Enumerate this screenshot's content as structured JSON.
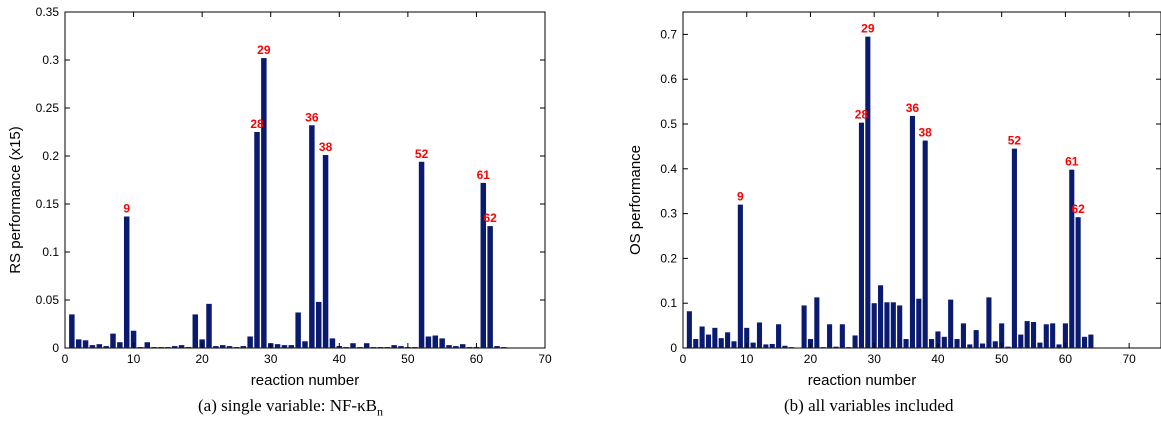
{
  "chart_data": [
    {
      "type": "bar",
      "title": "",
      "xlabel": "reaction number",
      "ylabel": "RS performance (x15)",
      "xlim": [
        0,
        70
      ],
      "ylim": [
        0,
        0.35
      ],
      "xticks": [
        0,
        10,
        20,
        30,
        40,
        50,
        60,
        70
      ],
      "yticks": [
        0,
        0.05,
        0.1,
        0.15,
        0.2,
        0.25,
        0.3,
        0.35
      ],
      "ytick_labels": [
        "0",
        "0.05",
        "0.1",
        "0.15",
        "0.2",
        "0.25",
        "0.3",
        "0.35"
      ],
      "grid": false,
      "bar_color": "#0a1a6e",
      "annotation_color": "#ff0000",
      "x": [
        1,
        2,
        3,
        4,
        5,
        6,
        7,
        8,
        9,
        10,
        11,
        12,
        13,
        14,
        15,
        16,
        17,
        18,
        19,
        20,
        21,
        22,
        23,
        24,
        25,
        26,
        27,
        28,
        29,
        30,
        31,
        32,
        33,
        34,
        35,
        36,
        37,
        38,
        39,
        40,
        41,
        42,
        43,
        44,
        45,
        46,
        47,
        48,
        49,
        50,
        51,
        52,
        53,
        54,
        55,
        56,
        57,
        58,
        59,
        60,
        61,
        62,
        63,
        64
      ],
      "values": [
        0.035,
        0.009,
        0.008,
        0.003,
        0.004,
        0.002,
        0.015,
        0.006,
        0.137,
        0.018,
        0.001,
        0.006,
        0.001,
        0.001,
        0.001,
        0.002,
        0.003,
        0.001,
        0.035,
        0.009,
        0.046,
        0.002,
        0.003,
        0.002,
        0.001,
        0.002,
        0.012,
        0.225,
        0.302,
        0.005,
        0.004,
        0.003,
        0.003,
        0.037,
        0.007,
        0.232,
        0.048,
        0.201,
        0.01,
        0.002,
        0.001,
        0.005,
        0.001,
        0.005,
        0.001,
        0.001,
        0.001,
        0.003,
        0.002,
        0.001,
        0.001,
        0.194,
        0.012,
        0.013,
        0.01,
        0.003,
        0.002,
        0.004,
        0.001,
        0.001,
        0.172,
        0.127,
        0.002,
        0.001
      ],
      "annotations": [
        {
          "label": "9",
          "x": 9,
          "y": 0.137
        },
        {
          "label": "28",
          "x": 28,
          "y": 0.225
        },
        {
          "label": "29",
          "x": 29,
          "y": 0.302
        },
        {
          "label": "36",
          "x": 36,
          "y": 0.232
        },
        {
          "label": "38",
          "x": 38,
          "y": 0.201
        },
        {
          "label": "52",
          "x": 52,
          "y": 0.194
        },
        {
          "label": "61",
          "x": 61,
          "y": 0.172
        },
        {
          "label": "62",
          "x": 62,
          "y": 0.127
        }
      ]
    },
    {
      "type": "bar",
      "title": "",
      "xlabel": "reaction number",
      "ylabel": "OS performance",
      "xlim": [
        0,
        75
      ],
      "ylim": [
        0,
        0.75
      ],
      "xticks": [
        0,
        10,
        20,
        30,
        40,
        50,
        60,
        70
      ],
      "yticks": [
        0,
        0.1,
        0.2,
        0.3,
        0.4,
        0.5,
        0.6,
        0.7
      ],
      "ytick_labels": [
        "0",
        "0.1",
        "0.2",
        "0.3",
        "0.4",
        "0.5",
        "0.6",
        "0.7"
      ],
      "grid": false,
      "bar_color": "#0a1a6e",
      "annotation_color": "#ff0000",
      "x": [
        1,
        2,
        3,
        4,
        5,
        6,
        7,
        8,
        9,
        10,
        11,
        12,
        13,
        14,
        15,
        16,
        17,
        18,
        19,
        20,
        21,
        22,
        23,
        24,
        25,
        26,
        27,
        28,
        29,
        30,
        31,
        32,
        33,
        34,
        35,
        36,
        37,
        38,
        39,
        40,
        41,
        42,
        43,
        44,
        45,
        46,
        47,
        48,
        49,
        50,
        51,
        52,
        53,
        54,
        55,
        56,
        57,
        58,
        59,
        60,
        61,
        62,
        63,
        64
      ],
      "values": [
        0.082,
        0.02,
        0.048,
        0.03,
        0.045,
        0.022,
        0.035,
        0.015,
        0.32,
        0.045,
        0.012,
        0.057,
        0.008,
        0.009,
        0.053,
        0.005,
        0.002,
        0.001,
        0.095,
        0.02,
        0.113,
        0.002,
        0.053,
        0.003,
        0.053,
        0.002,
        0.028,
        0.503,
        0.695,
        0.1,
        0.14,
        0.102,
        0.102,
        0.095,
        0.02,
        0.518,
        0.11,
        0.463,
        0.02,
        0.037,
        0.025,
        0.108,
        0.02,
        0.055,
        0.008,
        0.04,
        0.01,
        0.113,
        0.015,
        0.055,
        0.003,
        0.445,
        0.03,
        0.06,
        0.058,
        0.012,
        0.053,
        0.055,
        0.008,
        0.055,
        0.398,
        0.292,
        0.025,
        0.03
      ],
      "annotations": [
        {
          "label": "9",
          "x": 9,
          "y": 0.32
        },
        {
          "label": "28",
          "x": 28,
          "y": 0.503
        },
        {
          "label": "29",
          "x": 29,
          "y": 0.695
        },
        {
          "label": "36",
          "x": 36,
          "y": 0.518
        },
        {
          "label": "38",
          "x": 38,
          "y": 0.463
        },
        {
          "label": "52",
          "x": 52,
          "y": 0.445
        },
        {
          "label": "61",
          "x": 61,
          "y": 0.398
        },
        {
          "label": "62",
          "x": 62,
          "y": 0.292
        }
      ]
    }
  ],
  "captions": {
    "a": "(a) single variable: NF-κB",
    "a_sub": "n",
    "b": "(b) all variables included"
  }
}
